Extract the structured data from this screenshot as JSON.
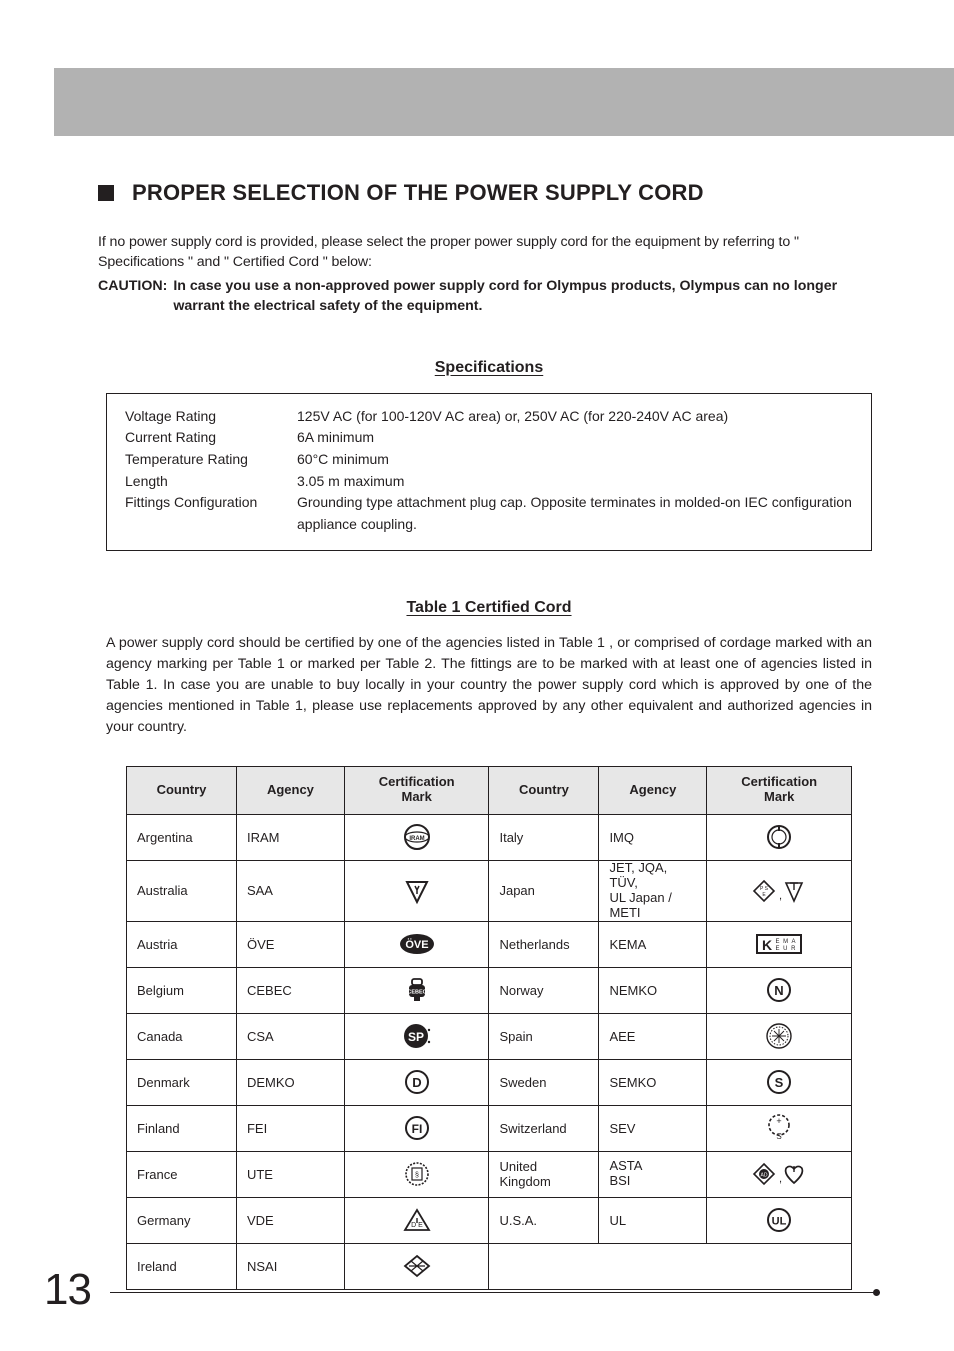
{
  "section_title": "PROPER SELECTION OF THE POWER SUPPLY CORD",
  "intro": "If no power supply cord is provided, please select the proper power supply cord for the equipment by referring to \" Specifications \" and \" Certified Cord \" below:",
  "caution_label": "CAUTION:",
  "caution_text": "In case you use a non-approved power supply cord for Olympus products, Olympus can no longer warrant the electrical safety of the equipment.",
  "spec_heading": "Specifications",
  "specs": [
    {
      "label": "Voltage Rating",
      "value": "125V AC (for 100-120V AC area) or, 250V AC (for 220-240V AC area)"
    },
    {
      "label": "Current Rating",
      "value": "6A minimum"
    },
    {
      "label": "Temperature Rating",
      "value": "60°C minimum"
    },
    {
      "label": "Length",
      "value": "3.05 m maximum"
    },
    {
      "label": "Fittings Configuration",
      "value": "Grounding type attachment plug cap. Opposite terminates in molded-on IEC configuration appliance coupling."
    }
  ],
  "table_heading": "Table 1  Certified Cord",
  "table_intro": "A power supply cord should be certified by one of the agencies listed in Table 1 , or comprised of cordage marked with an agency marking per Table 1 or marked per Table 2. The fittings are to be marked with at least one of agencies listed in Table 1. In case you are unable to buy locally in your country the power supply cord which is approved by one of the agencies mentioned in Table 1, please use replacements approved by any other equivalent and authorized agencies in your country.",
  "columns": {
    "country": "Country",
    "agency": "Agency",
    "mark": "Certification\nMark"
  },
  "rows_left": [
    {
      "country": "Argentina",
      "agency": "IRAM",
      "mark": "iram"
    },
    {
      "country": "Australia",
      "agency": "SAA",
      "mark": "saa"
    },
    {
      "country": "Austria",
      "agency": "ÖVE",
      "mark": "ove"
    },
    {
      "country": "Belgium",
      "agency": "CEBEC",
      "mark": "cebec"
    },
    {
      "country": "Canada",
      "agency": "CSA",
      "mark": "csa"
    },
    {
      "country": "Denmark",
      "agency": "DEMKO",
      "mark": "demko"
    },
    {
      "country": "Finland",
      "agency": "FEI",
      "mark": "fei"
    },
    {
      "country": "France",
      "agency": "UTE",
      "mark": "ute"
    },
    {
      "country": "Germany",
      "agency": "VDE",
      "mark": "vde"
    },
    {
      "country": "Ireland",
      "agency": "NSAI",
      "mark": "nsai"
    }
  ],
  "rows_right": [
    {
      "country": "Italy",
      "agency": "IMQ",
      "mark": "imq"
    },
    {
      "country": "Japan",
      "agency": "JET, JQA, TÜV,\nUL Japan / METI",
      "mark": "japan",
      "agency_small": true
    },
    {
      "country": "Netherlands",
      "agency": "KEMA",
      "mark": "kema"
    },
    {
      "country": "Norway",
      "agency": "NEMKO",
      "mark": "nemko"
    },
    {
      "country": "Spain",
      "agency": "AEE",
      "mark": "aee"
    },
    {
      "country": "Sweden",
      "agency": "SEMKO",
      "mark": "semko"
    },
    {
      "country": "Switzerland",
      "agency": "SEV",
      "mark": "sev"
    },
    {
      "country": "United\nKingdom",
      "agency": "ASTA\nBSI",
      "mark": "uk",
      "agency_small": true
    },
    {
      "country": "U.S.A.",
      "agency": "UL",
      "mark": "ul"
    }
  ],
  "page_number": "13",
  "colors": {
    "header_band": "#b2b2b2",
    "table_header_bg": "#e7e7e7",
    "text": "#231f20",
    "border": "#231f20"
  }
}
